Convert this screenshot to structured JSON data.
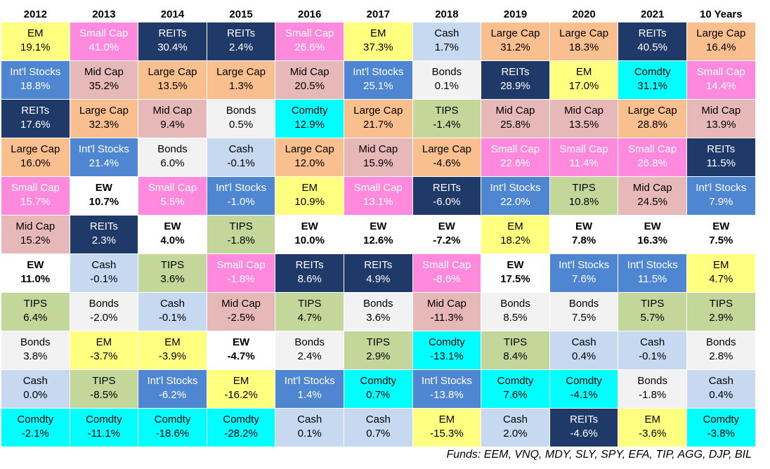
{
  "colors": {
    "EM": {
      "fill": "#ffff80",
      "ink": "#000000"
    },
    "Small Cap": {
      "fill": "#ff89dc",
      "ink": "#ffffff"
    },
    "REITs": {
      "fill": "#1f3a68",
      "ink": "#ffffff"
    },
    "Int'l Stocks": {
      "fill": "#4f86d2",
      "ink": "#ffffff"
    },
    "Mid Cap": {
      "fill": "#e6b9b8",
      "ink": "#000000"
    },
    "Large Cap": {
      "fill": "#f9bf8e",
      "ink": "#000000"
    },
    "Cash": {
      "fill": "#c6d9f1",
      "ink": "#000000"
    },
    "Bonds": {
      "fill": "#f2f2f2",
      "ink": "#000000"
    },
    "TIPS": {
      "fill": "#c4d79b",
      "ink": "#000000"
    },
    "Comdty": {
      "fill": "#00ffff",
      "ink": "#000000"
    },
    "EW": {
      "fill": "#ffffff",
      "ink": "#000000",
      "bold": true
    }
  },
  "columns": [
    {
      "header": "2012",
      "cells": [
        [
          "EM",
          "19.1%"
        ],
        [
          "Int'l Stocks",
          "18.8%"
        ],
        [
          "REITs",
          "17.6%"
        ],
        [
          "Large Cap",
          "16.0%"
        ],
        [
          "Small Cap",
          "15.7%"
        ],
        [
          "Mid Cap",
          "15.2%"
        ],
        [
          "EW",
          "11.0%"
        ],
        [
          "TIPS",
          "6.4%"
        ],
        [
          "Bonds",
          "3.8%"
        ],
        [
          "Cash",
          "0.0%"
        ],
        [
          "Comdty",
          "-2.1%"
        ]
      ]
    },
    {
      "header": "2013",
      "cells": [
        [
          "Small Cap",
          "41.0%"
        ],
        [
          "Mid Cap",
          "35.2%"
        ],
        [
          "Large Cap",
          "32.3%"
        ],
        [
          "Int'l Stocks",
          "21.4%"
        ],
        [
          "EW",
          "10.7%"
        ],
        [
          "REITs",
          "2.3%"
        ],
        [
          "Cash",
          "-0.1%"
        ],
        [
          "Bonds",
          "-2.0%"
        ],
        [
          "EM",
          "-3.7%"
        ],
        [
          "TIPS",
          "-8.5%"
        ],
        [
          "Comdty",
          "-11.1%"
        ]
      ]
    },
    {
      "header": "2014",
      "cells": [
        [
          "REITs",
          "30.4%"
        ],
        [
          "Large Cap",
          "13.5%"
        ],
        [
          "Mid Cap",
          "9.4%"
        ],
        [
          "Bonds",
          "6.0%"
        ],
        [
          "Small Cap",
          "5.5%"
        ],
        [
          "EW",
          "4.0%"
        ],
        [
          "TIPS",
          "3.6%"
        ],
        [
          "Cash",
          "-0.1%"
        ],
        [
          "EM",
          "-3.9%"
        ],
        [
          "Int'l Stocks",
          "-6.2%"
        ],
        [
          "Comdty",
          "-18.6%"
        ]
      ]
    },
    {
      "header": "2015",
      "cells": [
        [
          "REITs",
          "2.4%"
        ],
        [
          "Large Cap",
          "1.3%"
        ],
        [
          "Bonds",
          "0.5%"
        ],
        [
          "Cash",
          "-0.1%"
        ],
        [
          "Int'l Stocks",
          "-1.0%"
        ],
        [
          "TIPS",
          "-1.8%"
        ],
        [
          "Small Cap",
          "-1.8%"
        ],
        [
          "Mid Cap",
          "-2.5%"
        ],
        [
          "EW",
          "-4.7%"
        ],
        [
          "EM",
          "-16.2%"
        ],
        [
          "Comdty",
          "-28.2%"
        ]
      ]
    },
    {
      "header": "2016",
      "cells": [
        [
          "Small Cap",
          "26.6%"
        ],
        [
          "Mid Cap",
          "20.5%"
        ],
        [
          "Comdty",
          "12.9%"
        ],
        [
          "Large Cap",
          "12.0%"
        ],
        [
          "EM",
          "10.9%"
        ],
        [
          "EW",
          "10.0%"
        ],
        [
          "REITs",
          "8.6%"
        ],
        [
          "TIPS",
          "4.7%"
        ],
        [
          "Bonds",
          "2.4%"
        ],
        [
          "Int'l Stocks",
          "1.4%"
        ],
        [
          "Cash",
          "0.1%"
        ]
      ]
    },
    {
      "header": "2017",
      "cells": [
        [
          "EM",
          "37.3%"
        ],
        [
          "Int'l Stocks",
          "25.1%"
        ],
        [
          "Large Cap",
          "21.7%"
        ],
        [
          "Mid Cap",
          "15.9%"
        ],
        [
          "Small Cap",
          "13.1%"
        ],
        [
          "EW",
          "12.6%"
        ],
        [
          "REITs",
          "4.9%"
        ],
        [
          "Bonds",
          "3.6%"
        ],
        [
          "TIPS",
          "2.9%"
        ],
        [
          "Comdty",
          "0.7%"
        ],
        [
          "Cash",
          "0.7%"
        ]
      ]
    },
    {
      "header": "2018",
      "cells": [
        [
          "Cash",
          "1.7%"
        ],
        [
          "Bonds",
          "0.1%"
        ],
        [
          "TIPS",
          "-1.4%"
        ],
        [
          "Large Cap",
          "-4.6%"
        ],
        [
          "REITs",
          "-6.0%"
        ],
        [
          "EW",
          "-7.2%"
        ],
        [
          "Small Cap",
          "-8.6%"
        ],
        [
          "Mid Cap",
          "-11.3%"
        ],
        [
          "Comdty",
          "-13.1%"
        ],
        [
          "Int'l Stocks",
          "-13.8%"
        ],
        [
          "EM",
          "-15.3%"
        ]
      ]
    },
    {
      "header": "2019",
      "cells": [
        [
          "Large Cap",
          "31.2%"
        ],
        [
          "REITs",
          "28.9%"
        ],
        [
          "Mid Cap",
          "25.8%"
        ],
        [
          "Small Cap",
          "22.6%"
        ],
        [
          "Int'l Stocks",
          "22.0%"
        ],
        [
          "EM",
          "18.2%"
        ],
        [
          "EW",
          "17.5%"
        ],
        [
          "Bonds",
          "8.5%"
        ],
        [
          "TIPS",
          "8.4%"
        ],
        [
          "Comdty",
          "7.6%"
        ],
        [
          "Cash",
          "2.0%"
        ]
      ]
    },
    {
      "header": "2020",
      "cells": [
        [
          "Large Cap",
          "18.3%"
        ],
        [
          "EM",
          "17.0%"
        ],
        [
          "Mid Cap",
          "13.5%"
        ],
        [
          "Small Cap",
          "11.4%"
        ],
        [
          "TIPS",
          "10.8%"
        ],
        [
          "EW",
          "7.8%"
        ],
        [
          "Int'l Stocks",
          "7.6%"
        ],
        [
          "Bonds",
          "7.5%"
        ],
        [
          "Cash",
          "0.4%"
        ],
        [
          "Comdty",
          "-4.1%"
        ],
        [
          "REITs",
          "-4.6%"
        ]
      ]
    },
    {
      "header": "2021",
      "cells": [
        [
          "REITs",
          "40.5%"
        ],
        [
          "Comdty",
          "31.1%"
        ],
        [
          "Large Cap",
          "28.8%"
        ],
        [
          "Small Cap",
          "26.8%"
        ],
        [
          "Mid Cap",
          "24.5%"
        ],
        [
          "EW",
          "16.3%"
        ],
        [
          "Int'l Stocks",
          "11.5%"
        ],
        [
          "TIPS",
          "5.7%"
        ],
        [
          "Cash",
          "-0.1%"
        ],
        [
          "Bonds",
          "-1.8%"
        ],
        [
          "EM",
          "-3.6%"
        ]
      ]
    },
    {
      "header": "10 Years",
      "cells": [
        [
          "Large Cap",
          "16.4%"
        ],
        [
          "Small Cap",
          "14.4%"
        ],
        [
          "Mid Cap",
          "13.9%"
        ],
        [
          "REITs",
          "11.5%"
        ],
        [
          "Int'l Stocks",
          "7.9%"
        ],
        [
          "EW",
          "7.5%"
        ],
        [
          "EM",
          "4.7%"
        ],
        [
          "TIPS",
          "2.9%"
        ],
        [
          "Bonds",
          "2.8%"
        ],
        [
          "Cash",
          "0.4%"
        ],
        [
          "Comdty",
          "-3.8%"
        ]
      ]
    }
  ],
  "footer": "Funds: EEM, VNQ, MDY, SLY, SPY, EFA, TIP, AGG, DJP, BIL"
}
